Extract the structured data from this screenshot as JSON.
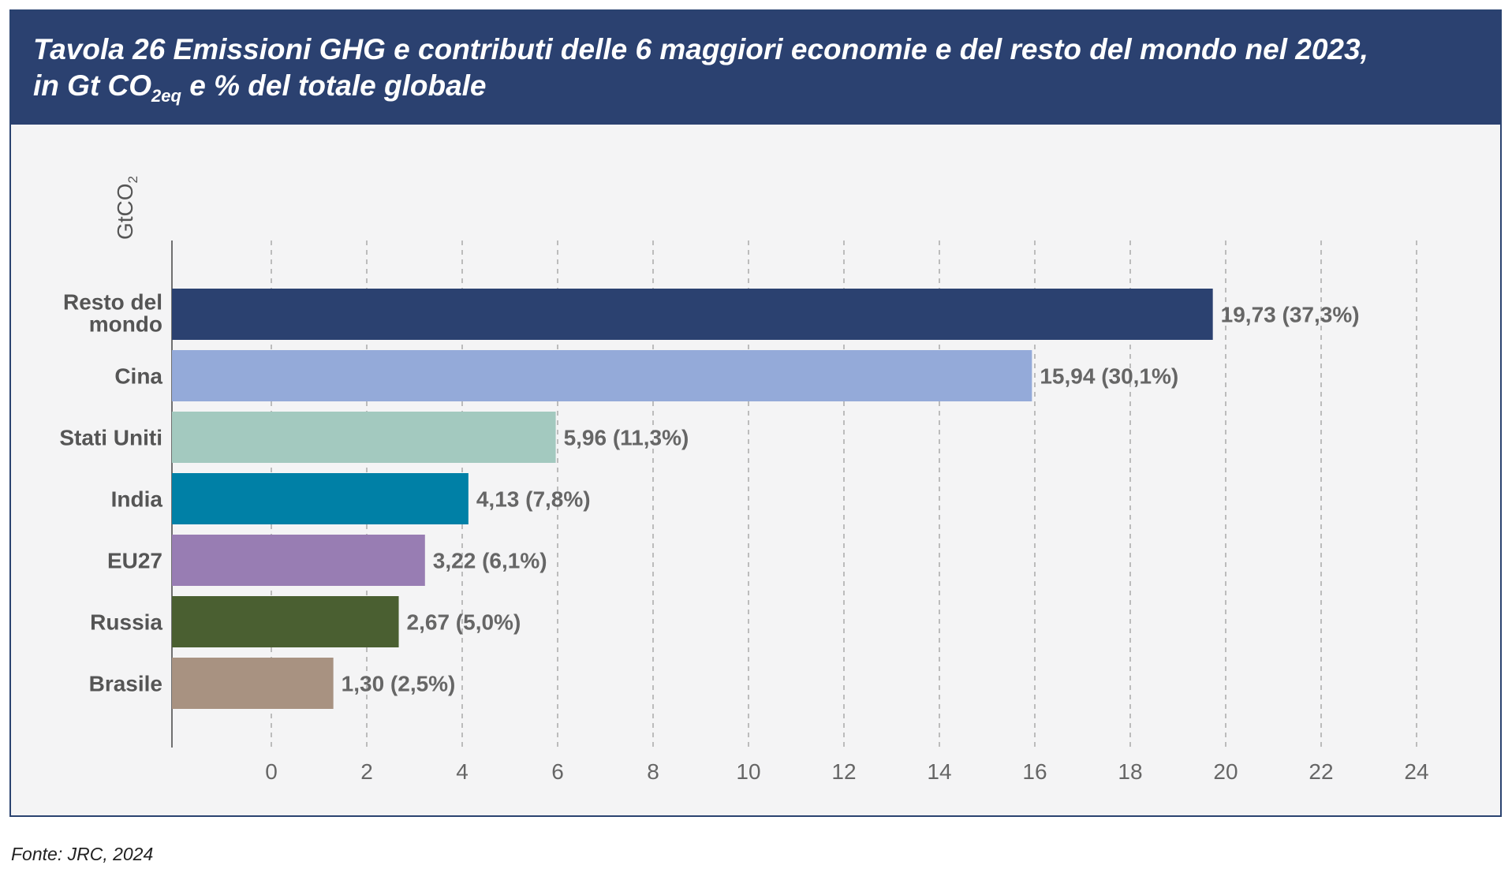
{
  "header": {
    "title_line1": "Tavola 26  Emissioni GHG e contributi delle 6 maggiori economie e del resto del mondo nel 2023,",
    "title_line2_pre": "in Gt CO",
    "title_line2_sub": "2eq",
    "title_line2_post": "e % del totale globale"
  },
  "footer": {
    "source": "Fonte: JRC, 2024"
  },
  "colors": {
    "header_bg": "#2b4170",
    "plot_bg": "#f4f4f5",
    "label_text": "#555555",
    "value_text": "#666666",
    "grid": "#aaaaaa"
  },
  "chart_data": {
    "type": "bar",
    "orientation": "horizontal",
    "ylabel": "GtCO",
    "ylabel_sub": "2",
    "xlim": [
      -2,
      24.2
    ],
    "xticks": [
      0,
      2,
      4,
      6,
      8,
      10,
      12,
      14,
      16,
      18,
      20,
      22,
      24
    ],
    "xtick_labels": [
      "0",
      "2",
      "4",
      "6",
      "8",
      "10",
      "12",
      "14",
      "16",
      "18",
      "20",
      "22",
      "24"
    ],
    "grid": "vertical dashed",
    "categories": [
      {
        "name": "Resto del mondo",
        "lines": [
          "Resto del",
          "mondo"
        ],
        "value": 19.73,
        "label": "19,73 (37,3%)",
        "color": "#2b4170"
      },
      {
        "name": "Cina",
        "lines": [
          "Cina"
        ],
        "value": 15.94,
        "label": "15,94 (30,1%)",
        "color": "#94aad9"
      },
      {
        "name": "Stati Uniti",
        "lines": [
          "Stati Uniti"
        ],
        "value": 5.96,
        "label": "5,96 (11,3%)",
        "color": "#a3c9bf"
      },
      {
        "name": "India",
        "lines": [
          "India"
        ],
        "value": 4.13,
        "label": "4,13 (7,8%)",
        "color": "#0080a6"
      },
      {
        "name": "EU27",
        "lines": [
          "EU27"
        ],
        "value": 3.22,
        "label": "3,22 (6,1%)",
        "color": "#987db3"
      },
      {
        "name": "Russia",
        "lines": [
          "Russia"
        ],
        "value": 2.67,
        "label": "2,67 (5,0%)",
        "color": "#4a5f31"
      },
      {
        "name": "Brasile",
        "lines": [
          "Brasile"
        ],
        "value": 1.3,
        "label": "1,30 (2,5%)",
        "color": "#a89281"
      }
    ]
  }
}
